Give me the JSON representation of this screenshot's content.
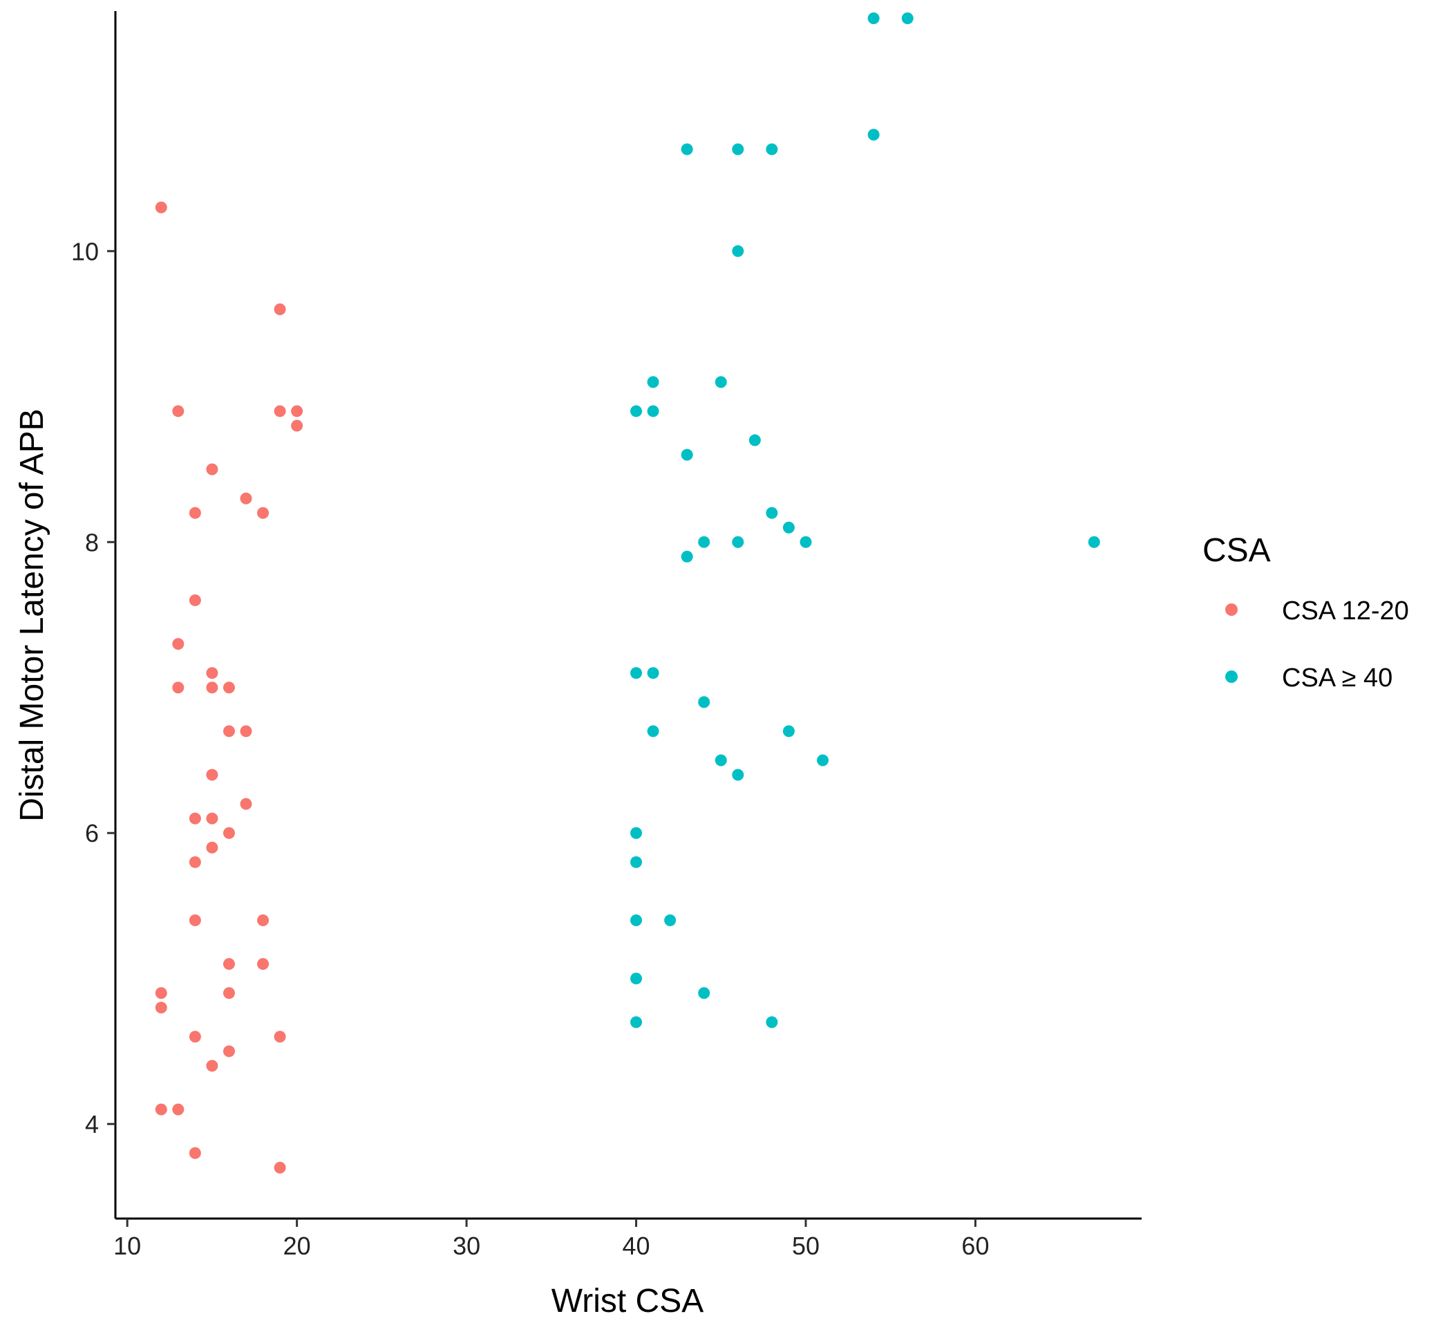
{
  "chart_data": {
    "type": "scatter",
    "title": "",
    "xlabel": "Wrist CSA",
    "ylabel": "Distal Motor Latency of APB",
    "xlim": [
      9.3,
      69.8
    ],
    "ylim": [
      3.35,
      11.65
    ],
    "xticks": [
      10,
      20,
      30,
      40,
      50,
      60
    ],
    "yticks": [
      4,
      6,
      8,
      10
    ],
    "grid": false,
    "legend": {
      "title": "CSA",
      "placement": "right"
    },
    "series": [
      {
        "name": "CSA 12-20",
        "color": "#F8766D",
        "points": [
          {
            "x": 12,
            "y": 10.3
          },
          {
            "x": 19,
            "y": 9.6
          },
          {
            "x": 13,
            "y": 8.9
          },
          {
            "x": 19,
            "y": 8.9
          },
          {
            "x": 20,
            "y": 8.9
          },
          {
            "x": 20,
            "y": 8.8
          },
          {
            "x": 15,
            "y": 8.5
          },
          {
            "x": 17,
            "y": 8.3
          },
          {
            "x": 14,
            "y": 8.2
          },
          {
            "x": 18,
            "y": 8.2
          },
          {
            "x": 14,
            "y": 7.6
          },
          {
            "x": 13,
            "y": 7.3
          },
          {
            "x": 15,
            "y": 7.1
          },
          {
            "x": 13,
            "y": 7.0
          },
          {
            "x": 15,
            "y": 7.0
          },
          {
            "x": 16,
            "y": 7.0
          },
          {
            "x": 16,
            "y": 6.7
          },
          {
            "x": 17,
            "y": 6.7
          },
          {
            "x": 15,
            "y": 6.4
          },
          {
            "x": 17,
            "y": 6.2
          },
          {
            "x": 14,
            "y": 6.1
          },
          {
            "x": 15,
            "y": 6.1
          },
          {
            "x": 16,
            "y": 6.0
          },
          {
            "x": 15,
            "y": 5.9
          },
          {
            "x": 14,
            "y": 5.8
          },
          {
            "x": 14,
            "y": 5.4
          },
          {
            "x": 18,
            "y": 5.4
          },
          {
            "x": 16,
            "y": 5.1
          },
          {
            "x": 18,
            "y": 5.1
          },
          {
            "x": 12,
            "y": 4.9
          },
          {
            "x": 16,
            "y": 4.9
          },
          {
            "x": 12,
            "y": 4.8
          },
          {
            "x": 14,
            "y": 4.6
          },
          {
            "x": 19,
            "y": 4.6
          },
          {
            "x": 16,
            "y": 4.5
          },
          {
            "x": 15,
            "y": 4.4
          },
          {
            "x": 12,
            "y": 4.1
          },
          {
            "x": 13,
            "y": 4.1
          },
          {
            "x": 14,
            "y": 3.8
          },
          {
            "x": 19,
            "y": 3.7
          }
        ]
      },
      {
        "name": "CSA ≥ 40",
        "color": "#00BFC4",
        "points": [
          {
            "x": 54,
            "y": 11.6
          },
          {
            "x": 56,
            "y": 11.6
          },
          {
            "x": 54,
            "y": 10.8
          },
          {
            "x": 43,
            "y": 10.7
          },
          {
            "x": 46,
            "y": 10.7
          },
          {
            "x": 48,
            "y": 10.7
          },
          {
            "x": 46,
            "y": 10.0
          },
          {
            "x": 41,
            "y": 9.1
          },
          {
            "x": 45,
            "y": 9.1
          },
          {
            "x": 40,
            "y": 8.9
          },
          {
            "x": 41,
            "y": 8.9
          },
          {
            "x": 47,
            "y": 8.7
          },
          {
            "x": 43,
            "y": 8.6
          },
          {
            "x": 48,
            "y": 8.2
          },
          {
            "x": 49,
            "y": 8.1
          },
          {
            "x": 44,
            "y": 8.0
          },
          {
            "x": 46,
            "y": 8.0
          },
          {
            "x": 50,
            "y": 8.0
          },
          {
            "x": 67,
            "y": 8.0
          },
          {
            "x": 43,
            "y": 7.9
          },
          {
            "x": 40,
            "y": 7.1
          },
          {
            "x": 41,
            "y": 7.1
          },
          {
            "x": 44,
            "y": 6.9
          },
          {
            "x": 41,
            "y": 6.7
          },
          {
            "x": 49,
            "y": 6.7
          },
          {
            "x": 45,
            "y": 6.5
          },
          {
            "x": 51,
            "y": 6.5
          },
          {
            "x": 46,
            "y": 6.4
          },
          {
            "x": 40,
            "y": 6.0
          },
          {
            "x": 40,
            "y": 5.8
          },
          {
            "x": 40,
            "y": 5.4
          },
          {
            "x": 42,
            "y": 5.4
          },
          {
            "x": 40,
            "y": 5.0
          },
          {
            "x": 44,
            "y": 4.9
          },
          {
            "x": 40,
            "y": 4.7
          },
          {
            "x": 48,
            "y": 4.7
          }
        ]
      }
    ]
  }
}
